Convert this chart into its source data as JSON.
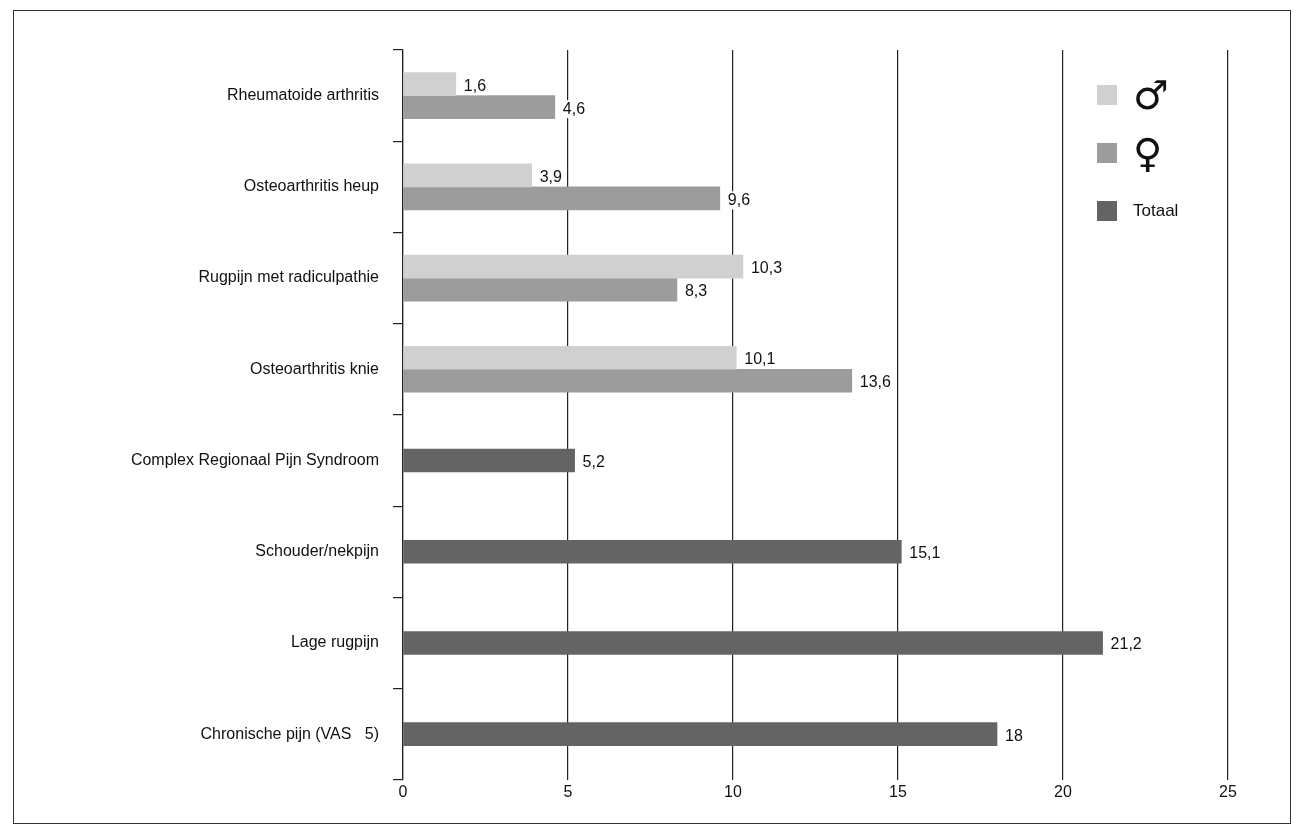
{
  "chart_data": {
    "type": "bar",
    "orientation": "horizontal",
    "categories": [
      "Rheumatoide arthritis",
      "Osteoarthritis heup",
      "Rugpijn met radiculpathie",
      "Osteoarthritis knie",
      "Complex Regionaal Pijn Syndroom",
      "Schouder/nekpijn",
      "Lage rugpijn",
      "Chronische pijn (VAS   5)"
    ],
    "series": [
      {
        "name": "♂",
        "color": "#d0d0d0",
        "values": [
          1.6,
          3.9,
          10.3,
          10.1,
          null,
          null,
          null,
          null
        ],
        "value_labels": [
          "1,6",
          "3,9",
          "10,3",
          "10,1",
          null,
          null,
          null,
          null
        ]
      },
      {
        "name": "♀",
        "color": "#9c9c9c",
        "values": [
          4.6,
          9.6,
          8.3,
          13.6,
          null,
          null,
          null,
          null
        ],
        "value_labels": [
          "4,6",
          "9,6",
          "8,3",
          "13,6",
          null,
          null,
          null,
          null
        ]
      },
      {
        "name": "Totaal",
        "color": "#646464",
        "values": [
          null,
          null,
          null,
          null,
          5.2,
          15.1,
          21.2,
          18
        ],
        "value_labels": [
          null,
          null,
          null,
          null,
          "5,2",
          "15,1",
          "21,2",
          "18"
        ]
      }
    ],
    "xlim": [
      0,
      25
    ],
    "xticks": [
      0,
      5,
      10,
      15,
      20,
      25
    ],
    "grid": "x",
    "legend": "top right"
  }
}
